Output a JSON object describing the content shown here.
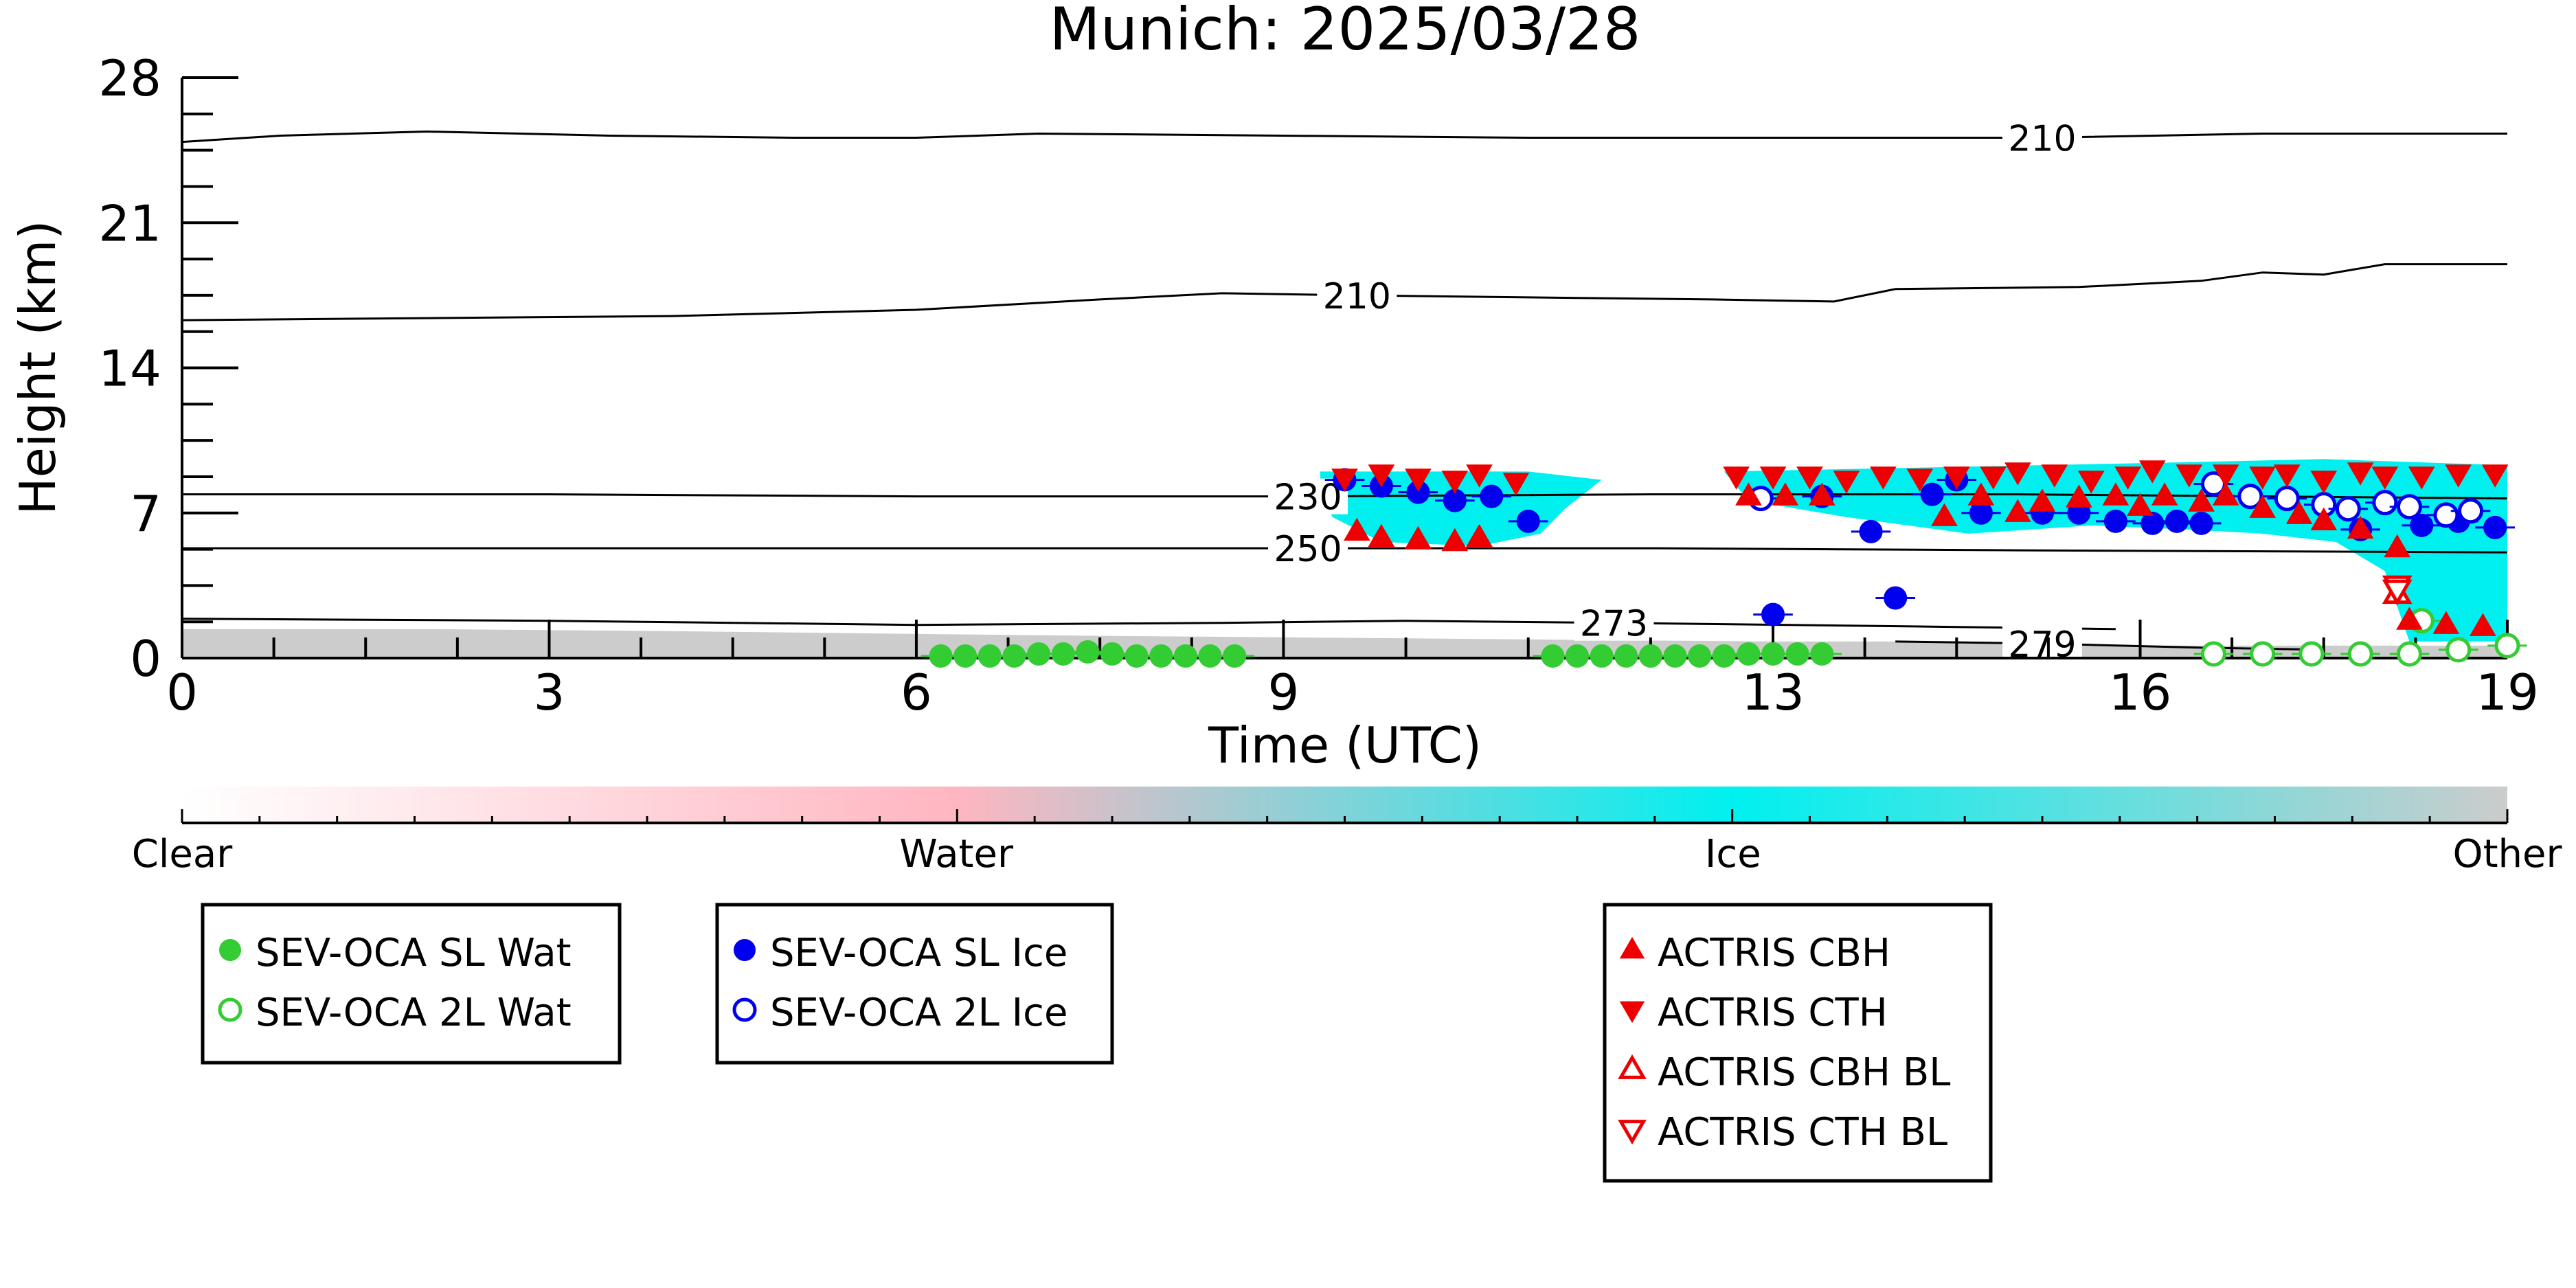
{
  "chart_data": {
    "type": "scatter",
    "title": "Munich: 2025/03/28",
    "xlabel": "Time (UTC)",
    "ylabel": "Height (km)",
    "xlim": [
      0,
      19
    ],
    "ylim": [
      0,
      28
    ],
    "x_ticks": [
      0,
      3,
      6,
      9,
      13,
      16,
      19
    ],
    "y_ticks": [
      0,
      7,
      14,
      21,
      28
    ],
    "grid": false,
    "colors": {
      "water_fill": "#33cc33",
      "ice_fill": "#0000ee",
      "actris": "#ee0000",
      "ice_region": "#00f0f0",
      "other_region": "#cccccc",
      "clear": "#ffffff",
      "water_class": "#ffb6c1"
    },
    "temperature_contours": [
      {
        "label": "210",
        "label_x": 15.2,
        "points": [
          [
            0,
            24.9
          ],
          [
            0.8,
            25.2
          ],
          [
            2,
            25.4
          ],
          [
            3.5,
            25.2
          ],
          [
            5,
            25.1
          ],
          [
            6,
            25.1
          ],
          [
            7,
            25.3
          ],
          [
            9,
            25.2
          ],
          [
            11,
            25.1
          ],
          [
            13,
            25.1
          ],
          [
            15.2,
            25.1
          ],
          [
            17,
            25.3
          ],
          [
            19,
            25.3
          ]
        ]
      },
      {
        "label": "210",
        "label_x": 9.6,
        "points": [
          [
            0,
            16.3
          ],
          [
            2,
            16.4
          ],
          [
            4,
            16.5
          ],
          [
            6,
            16.8
          ],
          [
            7.5,
            17.3
          ],
          [
            8.5,
            17.6
          ],
          [
            9.6,
            17.5
          ],
          [
            11,
            17.4
          ],
          [
            12.5,
            17.3
          ],
          [
            13.5,
            17.2
          ],
          [
            14,
            17.8
          ],
          [
            15.5,
            17.9
          ],
          [
            16.5,
            18.2
          ],
          [
            17,
            18.6
          ],
          [
            17.5,
            18.5
          ],
          [
            18,
            19.0
          ],
          [
            19,
            19.0
          ]
        ]
      },
      {
        "label": "230",
        "label_x": 9.2,
        "points": [
          [
            0,
            7.9
          ],
          [
            3,
            7.9
          ],
          [
            6,
            7.8
          ],
          [
            9.2,
            7.8
          ],
          [
            12,
            7.9
          ],
          [
            15,
            7.9
          ],
          [
            19,
            7.7
          ]
        ]
      },
      {
        "label": "250",
        "label_x": 9.2,
        "points": [
          [
            0,
            5.3
          ],
          [
            3,
            5.3
          ],
          [
            6,
            5.3
          ],
          [
            9.2,
            5.3
          ],
          [
            12,
            5.3
          ],
          [
            15,
            5.2
          ],
          [
            19,
            5.1
          ]
        ]
      },
      {
        "label": "273",
        "label_x": 11.7,
        "points": [
          [
            0,
            1.9
          ],
          [
            3,
            1.8
          ],
          [
            6,
            1.6
          ],
          [
            8.5,
            1.7
          ],
          [
            10,
            1.8
          ],
          [
            11.7,
            1.7
          ],
          [
            14.5,
            1.5
          ],
          [
            15.8,
            1.4
          ]
        ]
      },
      {
        "label": "279",
        "label_x": 15.2,
        "points": [
          [
            14,
            0.8
          ],
          [
            15.2,
            0.7
          ],
          [
            16.5,
            0.5
          ],
          [
            17.5,
            0.4
          ]
        ]
      }
    ],
    "colorbar": {
      "labels": [
        "Clear",
        "Water",
        "Ice",
        "Other"
      ],
      "stops": [
        0,
        0.333,
        0.667,
        1
      ]
    },
    "series": [
      {
        "name": "SEV-OCA SL Wat",
        "marker": "filled-circle",
        "color": "#33cc33",
        "x": [
          6.2,
          6.4,
          6.6,
          6.8,
          7.0,
          7.2,
          7.4,
          7.6,
          7.8,
          8.0,
          8.2,
          8.4,
          8.6,
          11.2,
          11.4,
          11.6,
          11.8,
          12.0,
          12.2,
          12.4,
          12.6,
          12.8,
          13.0,
          13.2,
          13.4
        ],
        "y": [
          0.1,
          0.1,
          0.1,
          0.1,
          0.2,
          0.2,
          0.3,
          0.2,
          0.1,
          0.1,
          0.1,
          0.1,
          0.1,
          0.1,
          0.1,
          0.1,
          0.1,
          0.1,
          0.1,
          0.1,
          0.1,
          0.2,
          0.2,
          0.2,
          0.2
        ]
      },
      {
        "name": "SEV-OCA 2L Wat",
        "marker": "open-circle",
        "color": "#33cc33",
        "x": [
          18.3,
          16.6,
          17.0,
          17.4,
          17.8,
          18.2,
          18.6,
          19.0
        ],
        "y": [
          1.8,
          0.2,
          0.2,
          0.2,
          0.2,
          0.2,
          0.4,
          0.6
        ]
      },
      {
        "name": "SEV-OCA SL Ice",
        "marker": "filled-circle",
        "color": "#0000ee",
        "x": [
          9.5,
          9.8,
          10.1,
          10.4,
          10.7,
          11.0,
          13.0,
          13.4,
          13.8,
          14.0,
          14.3,
          14.5,
          14.7,
          15.2,
          15.5,
          15.8,
          16.1,
          16.3,
          16.5,
          17.8,
          18.3,
          18.6,
          18.9
        ],
        "y": [
          8.6,
          8.3,
          8.0,
          7.6,
          7.8,
          6.6,
          2.1,
          7.8,
          6.1,
          2.9,
          7.9,
          8.6,
          7.0,
          7.0,
          7.0,
          6.6,
          6.5,
          6.6,
          6.5,
          6.2,
          6.4,
          6.6,
          6.3
        ]
      },
      {
        "name": "SEV-OCA 2L Ice",
        "marker": "open-circle",
        "color": "#0000ee",
        "x": [
          12.9,
          16.6,
          16.9,
          17.2,
          17.5,
          17.7,
          18.0,
          18.2,
          18.5,
          18.7
        ],
        "y": [
          7.7,
          8.4,
          7.8,
          7.7,
          7.4,
          7.2,
          7.5,
          7.3,
          6.9,
          7.1
        ]
      },
      {
        "name": "ACTRIS CBH",
        "marker": "triangle-up",
        "color": "#ee0000",
        "x": [
          9.6,
          9.8,
          10.1,
          10.4,
          10.6,
          12.8,
          13.1,
          13.4,
          14.4,
          14.7,
          15.0,
          15.2,
          15.5,
          15.8,
          16.0,
          16.2,
          16.5,
          16.7,
          17.0,
          17.3,
          17.5,
          17.8,
          18.1,
          18.2,
          18.5,
          18.8
        ],
        "y": [
          6.1,
          5.8,
          5.7,
          5.6,
          5.8,
          7.8,
          7.8,
          7.8,
          6.8,
          7.8,
          7.0,
          7.5,
          7.7,
          7.8,
          7.3,
          7.8,
          7.5,
          7.8,
          7.2,
          6.9,
          6.6,
          6.2,
          5.3,
          1.8,
          1.6,
          1.5
        ]
      },
      {
        "name": "ACTRIS CTH",
        "marker": "triangle-down",
        "color": "#ee0000",
        "x": [
          9.5,
          9.8,
          10.1,
          10.4,
          10.6,
          10.9,
          12.7,
          13.0,
          13.3,
          13.6,
          13.9,
          14.2,
          14.5,
          14.8,
          15.0,
          15.3,
          15.6,
          15.9,
          16.1,
          16.4,
          16.7,
          17.0,
          17.2,
          17.5,
          17.8,
          18.0,
          18.3,
          18.6,
          18.9
        ],
        "y": [
          8.7,
          8.9,
          8.7,
          8.6,
          8.9,
          8.5,
          8.8,
          8.8,
          8.8,
          8.6,
          8.8,
          8.7,
          8.8,
          8.8,
          9.0,
          8.9,
          8.6,
          8.8,
          9.1,
          8.9,
          8.9,
          8.8,
          8.9,
          8.6,
          9.0,
          8.8,
          8.8,
          8.9,
          8.9
        ]
      },
      {
        "name": "ACTRIS CBH BL",
        "marker": "open-triangle-up",
        "color": "#ee0000",
        "x": [
          18.1
        ],
        "y": [
          3.1
        ]
      },
      {
        "name": "ACTRIS CTH BL",
        "marker": "open-triangle-down",
        "color": "#ee0000",
        "x": [
          18.1,
          18.1
        ],
        "y": [
          3.5,
          3.3
        ]
      }
    ],
    "legend_groups": [
      {
        "entries": [
          "SEV-OCA SL Wat",
          "SEV-OCA 2L Wat"
        ]
      },
      {
        "entries": [
          "SEV-OCA SL Ice",
          "SEV-OCA 2L Ice"
        ]
      },
      {
        "entries": [
          "ACTRIS CBH",
          "ACTRIS CTH",
          "ACTRIS CBH BL",
          "ACTRIS CTH BL"
        ]
      }
    ]
  }
}
